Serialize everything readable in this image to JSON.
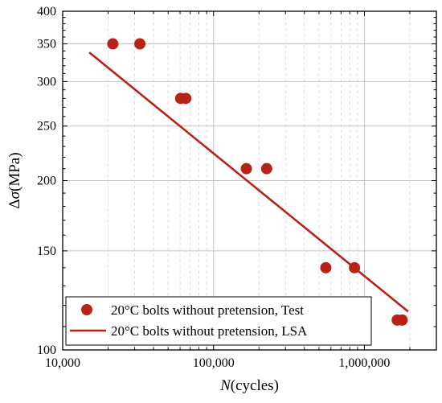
{
  "chart_data": {
    "type": "scatter",
    "title": "",
    "xlabel": {
      "italic": "N",
      "rest": "(cycles)"
    },
    "ylabel": {
      "prefix": "Δ",
      "italic": "σ",
      "rest": "(MPa)"
    },
    "x_scale": "log",
    "y_scale": "log",
    "xlim": [
      10000,
      3000000
    ],
    "ylim": [
      100,
      400
    ],
    "x_ticks": [
      {
        "value": 10000,
        "label": "10,000"
      },
      {
        "value": 100000,
        "label": "100,000"
      },
      {
        "value": 1000000,
        "label": "1,000,000"
      }
    ],
    "y_ticks": [
      {
        "value": 100,
        "label": "100"
      },
      {
        "value": 150,
        "label": "150"
      },
      {
        "value": 200,
        "label": "200"
      },
      {
        "value": 250,
        "label": "250"
      },
      {
        "value": 300,
        "label": "300"
      },
      {
        "value": 350,
        "label": "350"
      },
      {
        "value": 400,
        "label": "400"
      }
    ],
    "grid": true,
    "legend_position": "bottom-left",
    "series": [
      {
        "name": "20°C bolts without pretension, Test",
        "kind": "scatter",
        "color": "#b82318",
        "points": [
          {
            "x": 21500,
            "y": 350
          },
          {
            "x": 32500,
            "y": 350
          },
          {
            "x": 60500,
            "y": 280
          },
          {
            "x": 65500,
            "y": 280
          },
          {
            "x": 165000,
            "y": 210
          },
          {
            "x": 225000,
            "y": 210
          },
          {
            "x": 555000,
            "y": 140
          },
          {
            "x": 860000,
            "y": 140
          },
          {
            "x": 1650000,
            "y": 113
          },
          {
            "x": 1780000,
            "y": 113
          }
        ]
      },
      {
        "name": "20°C bolts without pretension, LSA",
        "kind": "line",
        "color": "#b82318",
        "points": [
          {
            "x": 15000,
            "y": 338
          },
          {
            "x": 1950000,
            "y": 117
          }
        ]
      }
    ]
  }
}
